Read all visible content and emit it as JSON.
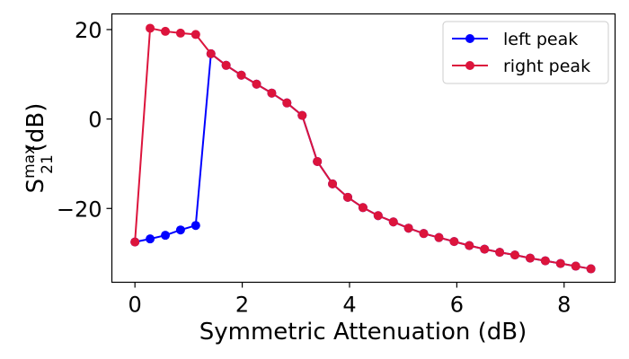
{
  "chart_data": {
    "type": "line",
    "xlabel": "Symmetric Attenuation (dB)",
    "ylabel": {
      "base": "S",
      "superscript": "max",
      "subscript": "21",
      "unit": "(dB)"
    },
    "xlim": [
      -0.43,
      8.95
    ],
    "ylim": [
      -36.5,
      23.5
    ],
    "xticks": [
      0,
      2,
      4,
      6,
      8
    ],
    "yticks": [
      -20,
      0,
      20
    ],
    "ytick_labels": [
      "−20",
      "0",
      "20"
    ],
    "grid": false,
    "legend_position": "top-right",
    "x": [
      0,
      0.283,
      0.567,
      0.85,
      1.133,
      1.417,
      1.7,
      1.983,
      2.267,
      2.55,
      2.833,
      3.117,
      3.4,
      3.683,
      3.967,
      4.25,
      4.533,
      4.817,
      5.1,
      5.383,
      5.667,
      5.95,
      6.233,
      6.517,
      6.8,
      7.083,
      7.367,
      7.65,
      7.933,
      8.217,
      8.5
    ],
    "series": [
      {
        "name": "left peak",
        "color": "#0000ff",
        "values": [
          -27.5,
          -26.8,
          -26.0,
          -24.8,
          -23.8,
          14.6,
          12.0,
          9.8,
          7.8,
          5.8,
          3.6,
          0.8,
          -9.5,
          -14.5,
          -17.5,
          -19.8,
          -21.6,
          -23.0,
          -24.4,
          -25.6,
          -26.5,
          -27.4,
          -28.3,
          -29.1,
          -29.8,
          -30.4,
          -31.1,
          -31.7,
          -32.3,
          -32.9,
          -33.5
        ]
      },
      {
        "name": "right peak",
        "color": "#dc143c",
        "values": [
          -27.5,
          20.3,
          19.6,
          19.2,
          18.9,
          14.6,
          12.0,
          9.8,
          7.8,
          5.8,
          3.6,
          0.8,
          -9.5,
          -14.5,
          -17.5,
          -19.8,
          -21.6,
          -23.0,
          -24.4,
          -25.6,
          -26.5,
          -27.4,
          -28.3,
          -29.1,
          -29.8,
          -30.4,
          -31.1,
          -31.7,
          -32.3,
          -32.9,
          -33.5
        ]
      }
    ]
  }
}
